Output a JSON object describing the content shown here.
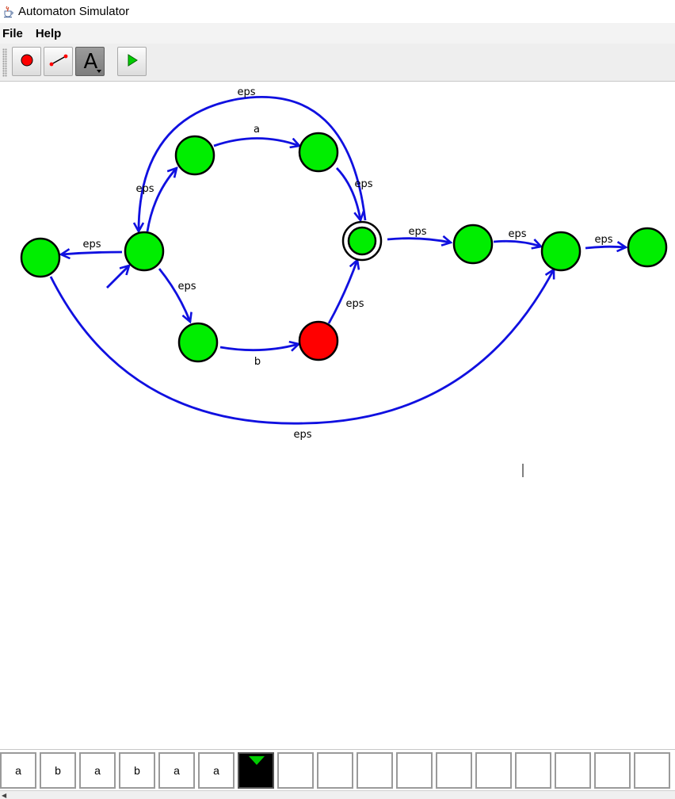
{
  "window": {
    "title": "Automaton Simulator",
    "app_icon": "java-cup-icon"
  },
  "menu": [
    {
      "label": "File"
    },
    {
      "label": "Help"
    }
  ],
  "toolbar": {
    "buttons": [
      {
        "name": "add-state",
        "icon": "red-dot-icon"
      },
      {
        "name": "add-transition",
        "icon": "edge-icon"
      },
      {
        "name": "edit-label",
        "icon": "letter-a-icon",
        "glyph": "A",
        "selected": true
      },
      {
        "name": "run",
        "icon": "play-icon"
      }
    ]
  },
  "automaton": {
    "states": [
      {
        "id": "q0",
        "color": "#00ee00",
        "accepting": false,
        "active": false
      },
      {
        "id": "q1",
        "color": "#00ee00",
        "accepting": false,
        "initial": true
      },
      {
        "id": "q2",
        "color": "#00ee00",
        "accepting": false
      },
      {
        "id": "q3",
        "color": "#00ee00",
        "accepting": false
      },
      {
        "id": "q4",
        "color": "#00ee00",
        "accepting": false
      },
      {
        "id": "q5",
        "color": "#ff0000",
        "accepting": false,
        "highlighted": true
      },
      {
        "id": "q6",
        "color": "#00ee00",
        "accepting": true
      },
      {
        "id": "q7",
        "color": "#00ee00",
        "accepting": false
      },
      {
        "id": "q8",
        "color": "#00ee00",
        "accepting": false
      },
      {
        "id": "q9",
        "color": "#00ee00",
        "accepting": false
      }
    ],
    "transitions": [
      {
        "from": "q1",
        "to": "q0",
        "label": "eps"
      },
      {
        "from": "q1",
        "to": "q2",
        "label": "eps"
      },
      {
        "from": "q2",
        "to": "q3",
        "label": "a"
      },
      {
        "from": "q3",
        "to": "q6",
        "label": "eps"
      },
      {
        "from": "q6",
        "to": "q1",
        "label": "eps"
      },
      {
        "from": "q1",
        "to": "q4",
        "label": "eps"
      },
      {
        "from": "q4",
        "to": "q5",
        "label": "b"
      },
      {
        "from": "q5",
        "to": "q6",
        "label": "eps"
      },
      {
        "from": "q6",
        "to": "q7",
        "label": "eps"
      },
      {
        "from": "q7",
        "to": "q8",
        "label": "eps"
      },
      {
        "from": "q8",
        "to": "q9",
        "label": "eps"
      },
      {
        "from": "q0",
        "to": "q8",
        "label": "eps"
      }
    ],
    "edge_color": "#1010e0"
  },
  "tape": {
    "cells": [
      "a",
      "b",
      "a",
      "b",
      "a",
      "a",
      "",
      "",
      "",
      "",
      "",
      "",
      "",
      "",
      "",
      "",
      ""
    ],
    "head_index": 6,
    "head_color": "#000000",
    "pointer_color": "#00cc00"
  }
}
